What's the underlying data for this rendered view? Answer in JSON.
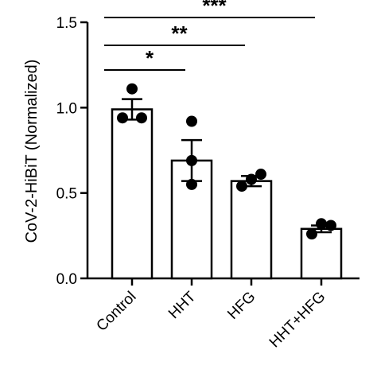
{
  "chart_data": {
    "type": "bar",
    "categories": [
      "Control",
      "HHT",
      "HFG",
      "HHT+HFG"
    ],
    "values": [
      0.99,
      0.69,
      0.57,
      0.29
    ],
    "error": [
      0.06,
      0.12,
      0.03,
      0.02
    ],
    "points": [
      [
        1.11,
        0.94,
        0.94
      ],
      [
        0.92,
        0.69,
        0.55
      ],
      [
        0.61,
        0.58,
        0.54
      ],
      [
        0.31,
        0.32,
        0.26
      ]
    ],
    "ylabel": "CoV-2-HiBiT (Normalized)",
    "xlabel": "",
    "ylim": [
      0,
      1.5
    ],
    "yticks": [
      "0.0",
      "0.5",
      "1.0",
      "1.5"
    ],
    "ytick_values": [
      0,
      0.5,
      1.0,
      1.5
    ],
    "grid": false,
    "significance": [
      {
        "from": "Control",
        "to": "HHT",
        "label": "*"
      },
      {
        "from": "Control",
        "to": "HFG",
        "label": "**"
      },
      {
        "from": "Control",
        "to": "HHT+HFG",
        "label": "***"
      }
    ]
  }
}
